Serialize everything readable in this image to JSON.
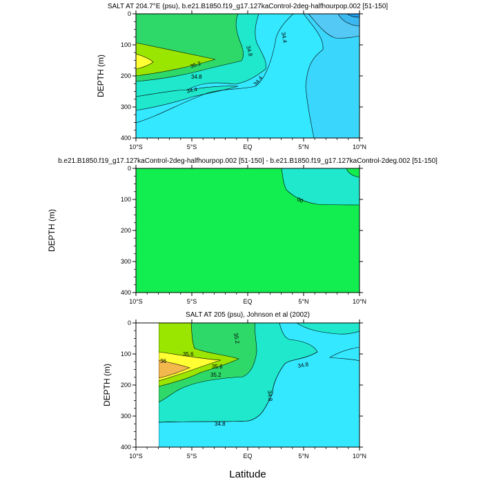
{
  "figure": {
    "xlabel_shared": "Latitude"
  },
  "palette": {
    "32.8": "#1f9de9",
    "33.2": "#3cb8f0",
    "33.6": "#55c9f5",
    "34.0": "#3ad6fc",
    "34.4": "#34e8ff",
    "34.8": "#1fe8cc",
    "35.2": "#2ed96a",
    "35.6": "#9be600",
    "36.0": "#ffff33",
    "36.4": "#f3b84d",
    "diff_zero": "#12ee4f",
    "diff_pos": "#1fe8cc"
  },
  "chart_data": [
    {
      "type": "contour",
      "title": "SALT AT 204.7°E (psu), b.e21.B1850.f19_g17.127kaControl-2deg-halfhourpop.002 [51-150]",
      "xlabel": "",
      "ylabel": "DEPTH (m)",
      "xlim": [
        -10,
        10
      ],
      "ylim": [
        400,
        0
      ],
      "x_ticks": [
        "10°S",
        "5°S",
        "EQ",
        "5°N",
        "10°N"
      ],
      "y_ticks": [
        "0",
        "100",
        "200",
        "300",
        "400"
      ],
      "contour_labels": [
        "34.8",
        "35.2",
        "34.8",
        "34.4",
        "34.4",
        "34.4"
      ],
      "grid": false
    },
    {
      "type": "contour",
      "title": "b.e21.B1850.f19_g17.127kaControl-2deg-halfhourpop.002 [51-150] - b.e21.B1850.f19_g17.127kaControl-2deg.002 [51-150]",
      "xlabel": "",
      "ylabel": "DEPTH (m)",
      "xlim": [
        -10,
        10
      ],
      "ylim": [
        400,
        0
      ],
      "x_ticks": [
        "10°S",
        "5°S",
        "EQ",
        "5°N",
        "10°N"
      ],
      "y_ticks": [
        "0",
        "100",
        "200",
        "300",
        "400"
      ],
      "contour_labels": [
        "00"
      ],
      "grid": false
    },
    {
      "type": "contour",
      "title": "SALT AT 205 (psu), Johnson et al (2002)",
      "xlabel": "Latitude",
      "ylabel": "DEPTH (m)",
      "xlim": [
        -10,
        10
      ],
      "ylim": [
        400,
        0
      ],
      "x_ticks": [
        "10°S",
        "5°S",
        "EQ",
        "5°N",
        "10°N"
      ],
      "y_ticks": [
        "0",
        "100",
        "200",
        "300",
        "400"
      ],
      "contour_labels": [
        "35.2",
        "35.6",
        "36",
        "35.6",
        "35.2",
        "34.8",
        "34.8",
        "34.8"
      ],
      "data_start_lat": -8,
      "grid": false
    }
  ]
}
